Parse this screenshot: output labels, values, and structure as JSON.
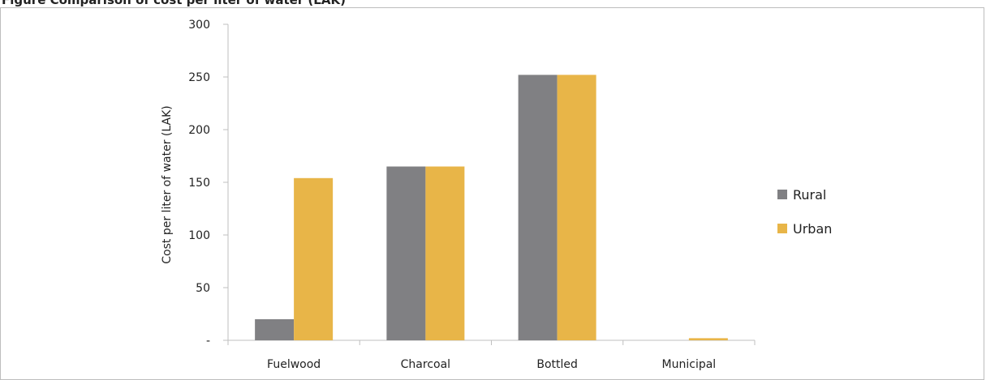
{
  "figure": {
    "caption_fragment": "Figure Comparison of cost per liter of water (LAK)"
  },
  "chart_data": {
    "type": "bar",
    "title": "",
    "xlabel": "",
    "ylabel": "Cost per liter of water (LAK)",
    "categories": [
      "Fuelwood",
      "Charcoal",
      "Bottled",
      "Municipal"
    ],
    "series": [
      {
        "name": "Rural",
        "values": [
          20,
          165,
          252,
          0
        ],
        "color": "#808083"
      },
      {
        "name": "Urban",
        "values": [
          154,
          165,
          252,
          2
        ],
        "color": "#e8b548"
      }
    ],
    "ylim": [
      0,
      300
    ],
    "yticks": [
      0,
      50,
      100,
      150,
      200,
      250,
      300
    ],
    "ytick_labels": [
      "-",
      "50",
      "100",
      "150",
      "200",
      "250",
      "300"
    ],
    "grid": false,
    "legend": "right"
  }
}
